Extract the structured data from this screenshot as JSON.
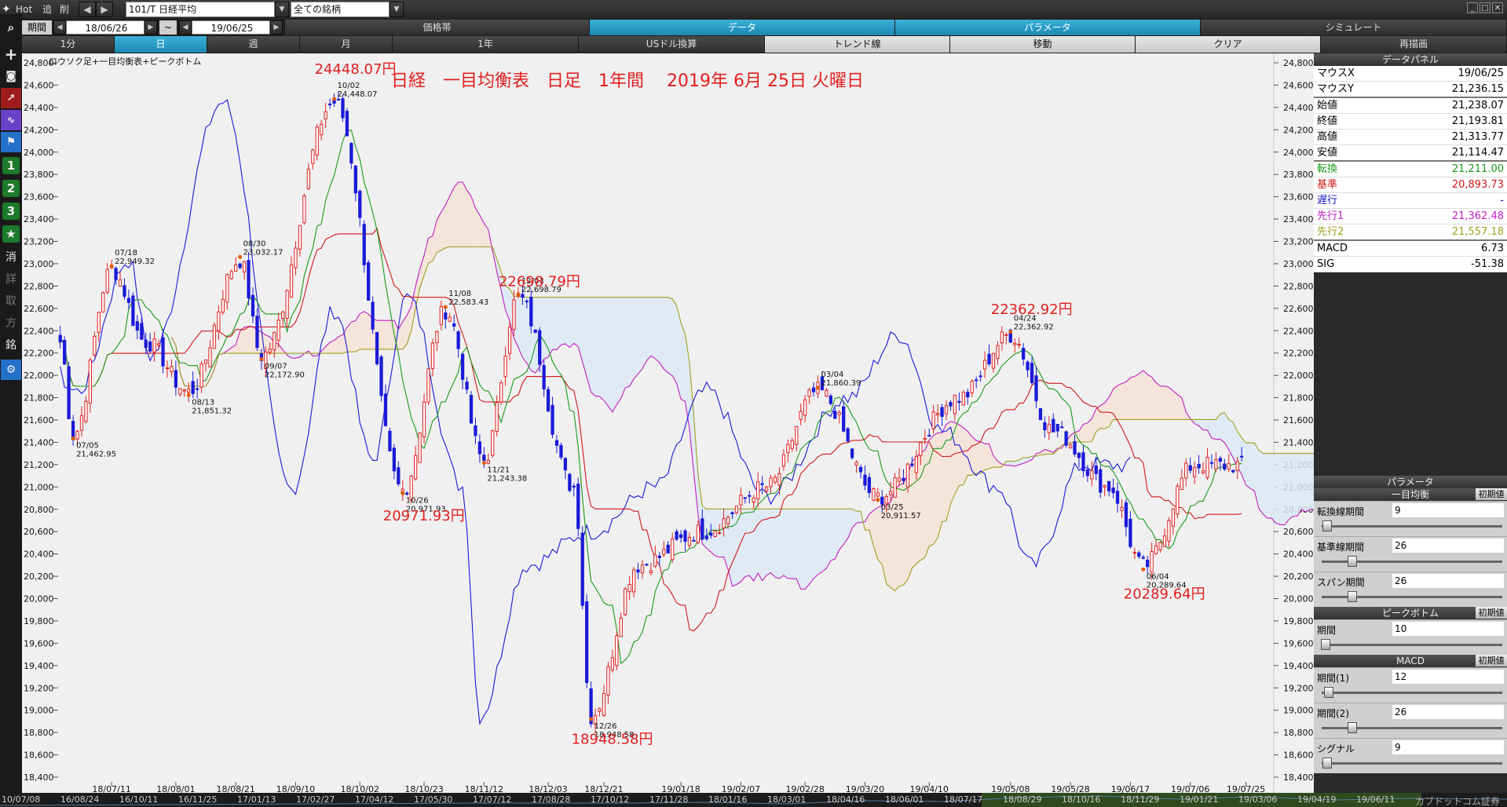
{
  "toolbar": {
    "hot_label": "Hot",
    "add_label": "追",
    "delete_label": "削",
    "symbol_value": "101/T 日経平均",
    "group_value": "全ての銘柄",
    "period_label": "期間",
    "start_date": "18/06/26",
    "range_sep": "~",
    "end_date": "19/06/25",
    "panel_tabs": [
      "価格帯",
      "データ",
      "パラメータ",
      "シミュレート"
    ],
    "interval_tabs": [
      "1分",
      "日",
      "週",
      "月",
      "1年",
      "USドル換算",
      "トレンド線",
      "移動",
      "クリア",
      "再描画"
    ]
  },
  "left_tools": {
    "search_icon": "search-icon",
    "add_icon": "plus-icon",
    "num1": "1",
    "num2": "2",
    "num3": "3",
    "erase": "消",
    "k1": "詳",
    "k2": "取",
    "k3": "方",
    "k4": "銘"
  },
  "chart": {
    "legend": "ロウソク足+一目均衡表+ピークボトム",
    "title": "日経　一目均衡表　日足　1年間　 2019年 6月 25日 火曜日",
    "annotations": [
      {
        "text": "24448.07円",
        "x": "18/10/02",
        "y": 24700
      },
      {
        "text": "22698.79円",
        "x": "18/12/03",
        "y": 22800
      },
      {
        "text": "22362.92円",
        "x": "19/04/24",
        "y": 22550
      },
      {
        "text": "20971.93円",
        "x": "18/10/26",
        "y": 20700
      },
      {
        "text": "18948.58円",
        "x": "18/12/26",
        "y": 18700
      },
      {
        "text": "20289.64円",
        "x": "19/06/04",
        "y": 20000
      }
    ],
    "peak_labels": [
      {
        "date": "07/18",
        "value": "22,949.32",
        "y": 22949.32,
        "x": "18/07/18"
      },
      {
        "date": "08/30",
        "value": "23,032.17",
        "y": 23032.17,
        "x": "18/08/30"
      },
      {
        "date": "10/02",
        "value": "24,448.07",
        "y": 24448.07,
        "x": "18/10/02"
      },
      {
        "date": "11/08",
        "value": "22,583.43",
        "y": 22583.43,
        "x": "18/11/08"
      },
      {
        "date": "12/03",
        "value": "22,698.79",
        "y": 22698.79,
        "x": "18/12/03"
      },
      {
        "date": "03/04",
        "value": "21,860.39",
        "y": 21860.39,
        "x": "19/03/04"
      },
      {
        "date": "04/24",
        "value": "22,362.92",
        "y": 22362.92,
        "x": "19/04/24"
      }
    ],
    "bottom_labels": [
      {
        "date": "07/05",
        "value": "21,462.95",
        "y": 21462.95,
        "x": "18/07/05"
      },
      {
        "date": "08/13",
        "value": "21,851.32",
        "y": 21851.32,
        "x": "18/08/13"
      },
      {
        "date": "09/07",
        "value": "22,172.90",
        "y": 22172.9,
        "x": "18/09/07"
      },
      {
        "date": "10/26",
        "value": "20,971.93",
        "y": 20971.93,
        "x": "18/10/26"
      },
      {
        "date": "11/21",
        "value": "21,243.38",
        "y": 21243.38,
        "x": "18/11/21"
      },
      {
        "date": "12/26",
        "value": "18,948.58",
        "y": 18948.58,
        "x": "18/12/26"
      },
      {
        "date": "03/25",
        "value": "20,911.57",
        "y": 20911.57,
        "x": "19/03/25"
      },
      {
        "date": "06/04",
        "value": "20,289.64",
        "y": 20289.64,
        "x": "19/06/04"
      }
    ],
    "x_ticks": [
      "18/07/11",
      "18/08/01",
      "18/08/21",
      "18/09/10",
      "18/10/02",
      "18/10/23",
      "18/11/12",
      "18/12/03",
      "18/12/21",
      "19/01/18",
      "19/02/07",
      "19/02/28",
      "19/03/20",
      "19/04/10",
      "19/05/08",
      "19/05/28",
      "19/06/17",
      "19/07/06",
      "19/07/25"
    ],
    "y_ticks": [
      "24,800",
      "24,600",
      "24,400",
      "24,200",
      "24,000",
      "23,800",
      "23,600",
      "23,400",
      "23,200",
      "23,000",
      "22,800",
      "22,600",
      "22,400",
      "22,200",
      "22,000",
      "21,800",
      "21,600",
      "21,400",
      "21,200",
      "21,000",
      "20,800",
      "20,600",
      "20,400",
      "20,200",
      "20,000",
      "19,800",
      "19,600",
      "19,400",
      "19,200",
      "19,000",
      "18,800",
      "18,600",
      "18,400"
    ]
  },
  "chart_data": {
    "type": "candlestick",
    "title": "日経　一目均衡表　日足　1年間　 2019年 6月 25日 火曜日",
    "xlabel": "",
    "ylabel": "",
    "ylim": [
      18400,
      24800
    ],
    "x": [
      "18/07/05",
      "18/07/18",
      "18/08/13",
      "18/08/30",
      "18/09/07",
      "18/10/02",
      "18/10/26",
      "18/11/08",
      "18/11/21",
      "18/12/03",
      "18/12/26",
      "19/03/04",
      "19/03/25",
      "19/04/24",
      "19/06/04",
      "19/06/25"
    ],
    "series": [
      {
        "name": "",
        "values": [
          21462.95,
          22949.32,
          21851.32,
          23032.17,
          22172.9,
          24448.07,
          20971.93,
          22583.43,
          21243.38,
          22698.79,
          18948.58,
          21860.39,
          20911.57,
          22362.92,
          20289.64,
          21193.81
        ]
      }
    ]
  },
  "data_panel": {
    "header": "データパネル",
    "rows": [
      {
        "label": "マウスX",
        "value": "19/06/25",
        "color": "#000000"
      },
      {
        "label": "マウスY",
        "value": "21,236.15",
        "color": "#000000"
      },
      {
        "label": "始値",
        "value": "21,238.07",
        "color": "#000000"
      },
      {
        "label": "終値",
        "value": "21,193.81",
        "color": "#000000"
      },
      {
        "label": "高値",
        "value": "21,313.77",
        "color": "#000000"
      },
      {
        "label": "安値",
        "value": "21,114.47",
        "color": "#000000"
      },
      {
        "label": "転換",
        "value": "21,211.00",
        "color": "#1a9a1a"
      },
      {
        "label": "基準",
        "value": "20,893.73",
        "color": "#d01818"
      },
      {
        "label": "遅行",
        "value": "-",
        "color": "#1818c8"
      },
      {
        "label": "先行1",
        "value": "21,362.48",
        "color": "#c020c0"
      },
      {
        "label": "先行2",
        "value": "21,557.18",
        "color": "#a0a020"
      },
      {
        "label": "MACD",
        "value": "6.73",
        "color": "#000000"
      },
      {
        "label": "SIG",
        "value": "-51.38",
        "color": "#000000"
      }
    ]
  },
  "param_panel": {
    "header": "パラメータ",
    "init_label": "初期値",
    "groups": [
      {
        "title": "一目均衡",
        "params": [
          {
            "label": "転換線期間",
            "value": "9",
            "level": 0.03
          },
          {
            "label": "基準線期間",
            "value": "26",
            "level": 0.17
          },
          {
            "label": "スパン期間",
            "value": "26",
            "level": 0.17
          }
        ]
      },
      {
        "title": "ピークボトム",
        "params": [
          {
            "label": "期間",
            "value": "10",
            "level": 0.02
          }
        ]
      },
      {
        "title": "MACD",
        "params": [
          {
            "label": "期間(1)",
            "value": "12",
            "level": 0.04
          },
          {
            "label": "期間(2)",
            "value": "26",
            "level": 0.17
          },
          {
            "label": "シグナル",
            "value": "9",
            "level": 0.03
          }
        ]
      }
    ]
  },
  "bottom_dates": [
    "10/07/08",
    "16/08/24",
    "16/10/11",
    "16/11/25",
    "17/01/13",
    "17/02/27",
    "17/04/12",
    "17/05/30",
    "17/07/12",
    "17/08/28",
    "17/10/12",
    "17/11/28",
    "18/01/16",
    "18/03/01",
    "18/04/16",
    "18/06/01",
    "18/07/17",
    "18/08/29",
    "18/10/16",
    "18/11/29",
    "19/01/21",
    "19/03/06",
    "19/04/19",
    "19/06/11",
    "カブドットコム証券"
  ],
  "colors": {
    "up": "#e02020",
    "down": "#1a1ad8",
    "tenkan": "#1a9a1a",
    "kijun": "#d01818",
    "chikou": "#1a1ad8",
    "senkou1": "#c020c0",
    "senkou2": "#a0a020",
    "annotation": "#e02020"
  }
}
